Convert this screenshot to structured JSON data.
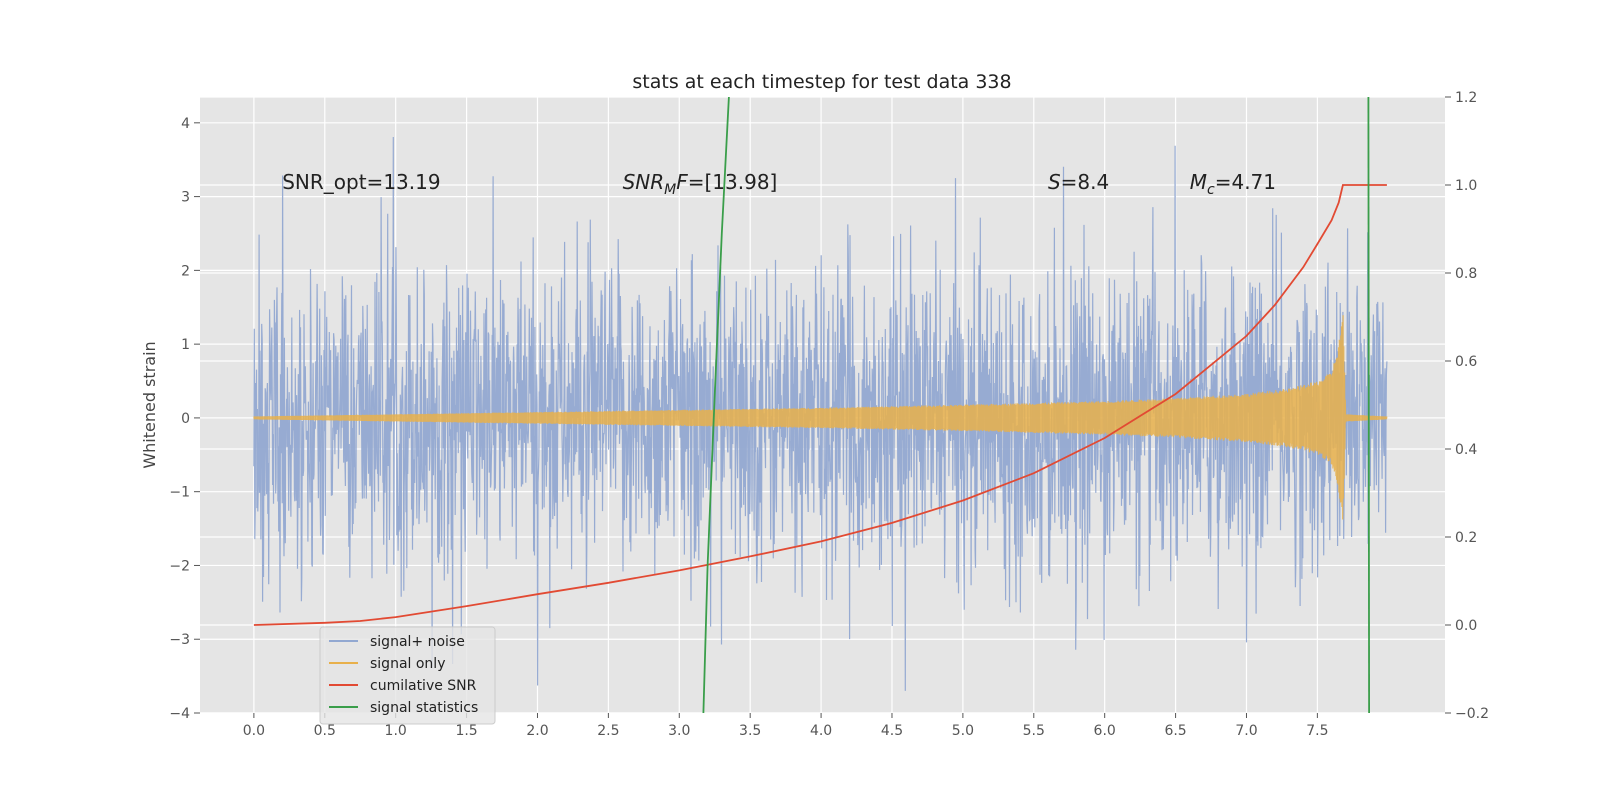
{
  "chart_data": {
    "type": "line",
    "title": "stats at each timestep for test data 338",
    "xlabel": "",
    "ylabel": "Whitened strain",
    "y2label": "",
    "xlim": [
      -0.38,
      8.4
    ],
    "ylim": [
      -4,
      4.35
    ],
    "y2lim": [
      -0.2,
      1.2
    ],
    "xticks": [
      "0.0",
      "0.5",
      "1.0",
      "1.5",
      "2.0",
      "2.5",
      "3.0",
      "3.5",
      "4.0",
      "4.5",
      "5.0",
      "5.5",
      "6.0",
      "6.5",
      "7.0",
      "7.5"
    ],
    "xtick_values": [
      0,
      0.5,
      1,
      1.5,
      2,
      2.5,
      3,
      3.5,
      4,
      4.5,
      5,
      5.5,
      6,
      6.5,
      7,
      7.5
    ],
    "yticks": [
      "−4",
      "−3",
      "−2",
      "−1",
      "0",
      "1",
      "2",
      "3",
      "4"
    ],
    "ytick_values": [
      -4,
      -3,
      -2,
      -1,
      0,
      1,
      2,
      3,
      4
    ],
    "y2ticks": [
      "−0.2",
      "0.0",
      "0.2",
      "0.4",
      "0.6",
      "0.8",
      "1.0",
      "1.2"
    ],
    "y2tick_values": [
      -0.2,
      0,
      0.2,
      0.4,
      0.6,
      0.8,
      1.0,
      1.2
    ],
    "grid": true,
    "legend": "lower-left",
    "annotations": [
      {
        "label": "SNR_opt=13.19",
        "x": 0.2,
        "y": 3.2
      },
      {
        "label": "SNR",
        "sub": "M",
        "suffix": "F=[13.98]",
        "x": 2.6,
        "y": 3.2
      },
      {
        "label": "S",
        "suffix": "=8.4",
        "x": 5.6,
        "y": 3.2
      },
      {
        "label": "M",
        "sub": "c",
        "suffix": "=4.71",
        "x": 6.6,
        "y": 3.2
      }
    ],
    "series": [
      {
        "name": "signal+ noise",
        "color": "#92a8d1",
        "axis": "left",
        "x_range": [
          0,
          7.99
        ],
        "typical_amplitude": 2.3,
        "peak_amplitude": 4.0
      },
      {
        "name": "signal only",
        "color": "#e8b04b",
        "axis": "left",
        "envelope_x": [
          0,
          1,
          2,
          3,
          4,
          5,
          6,
          6.5,
          7,
          7.3,
          7.5,
          7.6,
          7.65,
          7.68,
          7.7,
          7.99
        ],
        "envelope_y": [
          0.02,
          0.05,
          0.08,
          0.11,
          0.14,
          0.18,
          0.23,
          0.27,
          0.33,
          0.4,
          0.5,
          0.63,
          1.0,
          1.5,
          0.05,
          0.02
        ]
      },
      {
        "name": "cumilative SNR",
        "color": "#e24a33",
        "axis": "right",
        "x": [
          0,
          0.5,
          0.75,
          1,
          1.5,
          2,
          2.5,
          3,
          3.5,
          4,
          4.5,
          5,
          5.5,
          6,
          6.5,
          7,
          7.2,
          7.4,
          7.5,
          7.6,
          7.65,
          7.68,
          7.7,
          7.99
        ],
        "y": [
          0,
          0.005,
          0.009,
          0.018,
          0.043,
          0.07,
          0.096,
          0.124,
          0.156,
          0.19,
          0.232,
          0.283,
          0.345,
          0.425,
          0.525,
          0.657,
          0.727,
          0.813,
          0.866,
          0.92,
          0.96,
          1.0,
          1.0,
          1.0
        ]
      },
      {
        "name": "signal statistics",
        "color": "#3a9e4a",
        "axis": "left",
        "segments": [
          {
            "x": [
              3.17,
              3.2,
              3.25,
              3.3,
              3.35
            ],
            "y": [
              -4.0,
              -2.0,
              0.3,
              2.5,
              4.35
            ]
          },
          {
            "x": [
              7.86,
              7.865
            ],
            "y": [
              4.35,
              -4.0
            ]
          }
        ]
      }
    ]
  }
}
